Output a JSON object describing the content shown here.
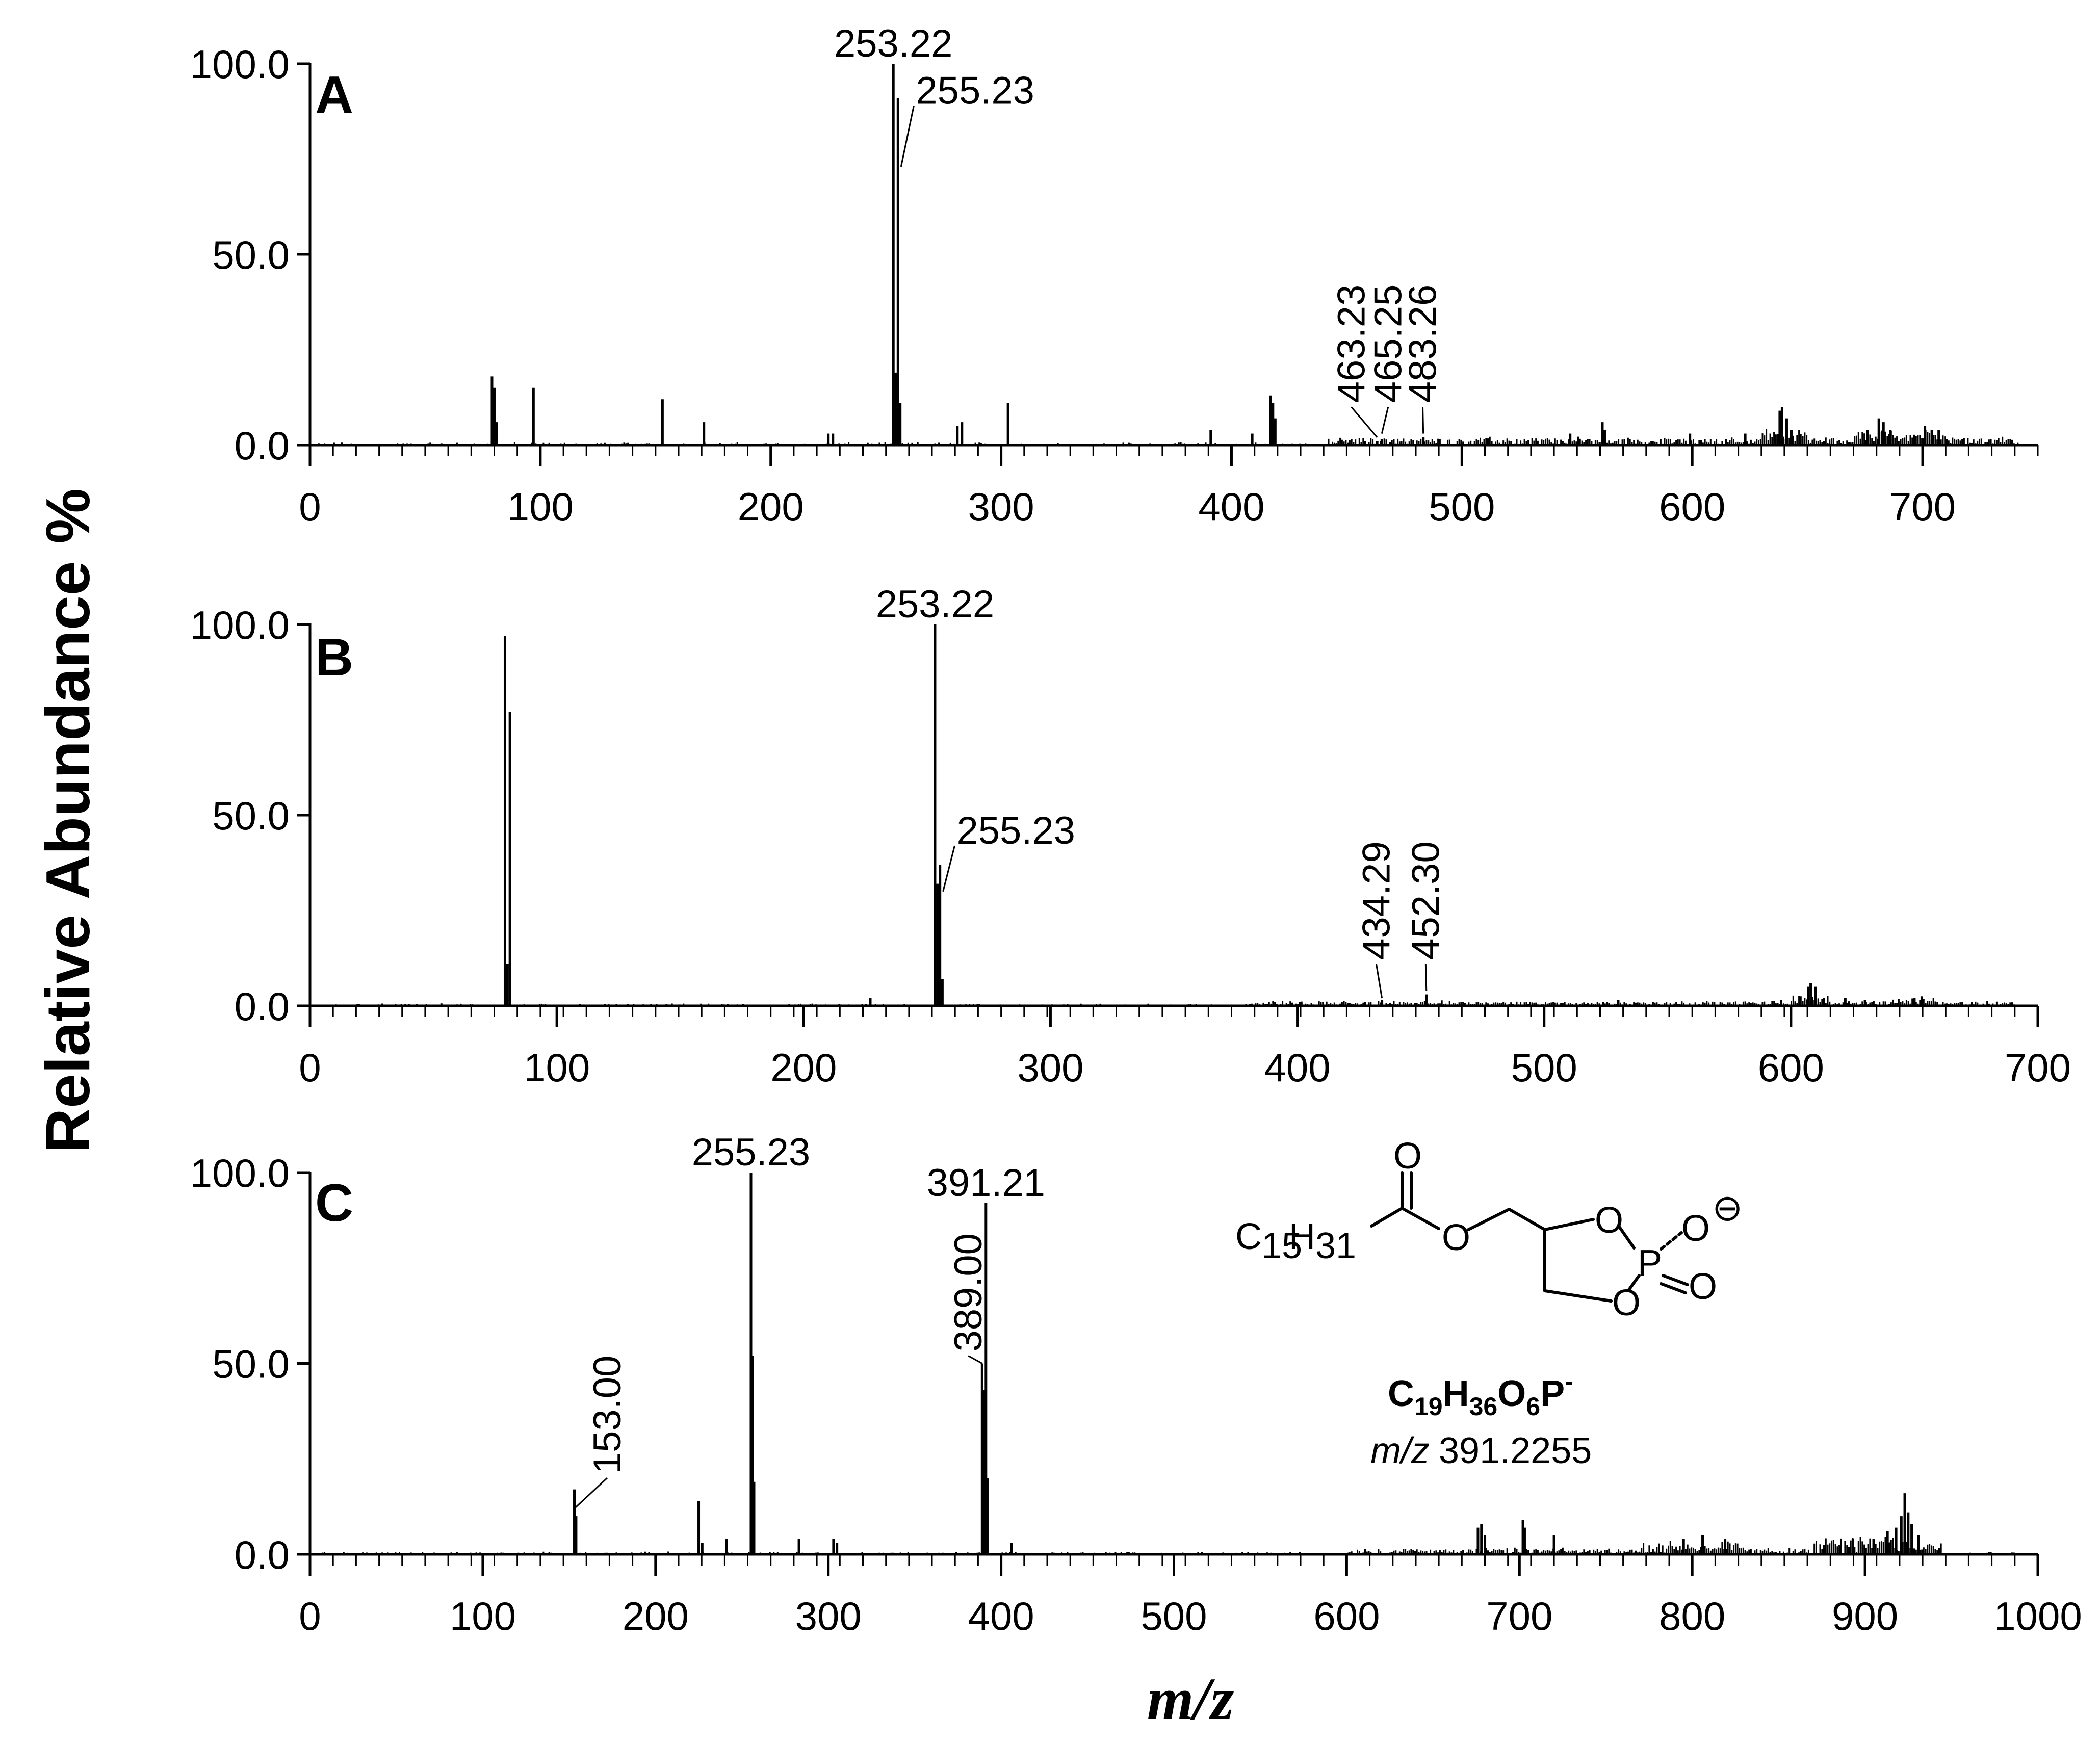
{
  "chart_data": [
    {
      "type": "bar",
      "panel": "A",
      "xlim": [
        0,
        750
      ],
      "ylim": [
        0,
        100
      ],
      "xticks": [
        "0",
        "100",
        "200",
        "300",
        "400",
        "500",
        "600",
        "700"
      ],
      "yticks": [
        "0.0",
        "50.0",
        "100.0"
      ],
      "peaks": [
        {
          "x": 79,
          "y": 18
        },
        {
          "x": 80,
          "y": 15
        },
        {
          "x": 81,
          "y": 6
        },
        {
          "x": 97,
          "y": 15
        },
        {
          "x": 153,
          "y": 12
        },
        {
          "x": 171,
          "y": 6
        },
        {
          "x": 225,
          "y": 3
        },
        {
          "x": 227,
          "y": 3
        },
        {
          "x": 253.22,
          "y": 100
        },
        {
          "x": 254.2,
          "y": 19
        },
        {
          "x": 255.23,
          "y": 91
        },
        {
          "x": 256.2,
          "y": 11
        },
        {
          "x": 281,
          "y": 5
        },
        {
          "x": 283,
          "y": 6
        },
        {
          "x": 303,
          "y": 11
        },
        {
          "x": 391,
          "y": 4
        },
        {
          "x": 409,
          "y": 3
        },
        {
          "x": 417,
          "y": 13
        },
        {
          "x": 418,
          "y": 11
        },
        {
          "x": 419,
          "y": 7
        },
        {
          "x": 463.23,
          "y": 1
        },
        {
          "x": 465.25,
          "y": 1.5
        },
        {
          "x": 483.26,
          "y": 2
        },
        {
          "x": 547,
          "y": 3
        },
        {
          "x": 561,
          "y": 6
        },
        {
          "x": 562,
          "y": 4
        },
        {
          "x": 599,
          "y": 3
        },
        {
          "x": 623,
          "y": 3
        },
        {
          "x": 638,
          "y": 9
        },
        {
          "x": 639,
          "y": 10
        },
        {
          "x": 641,
          "y": 7
        },
        {
          "x": 643,
          "y": 4
        },
        {
          "x": 676,
          "y": 4
        },
        {
          "x": 681,
          "y": 7
        },
        {
          "x": 683,
          "y": 6
        },
        {
          "x": 686,
          "y": 4
        },
        {
          "x": 701,
          "y": 5
        },
        {
          "x": 704,
          "y": 4
        },
        {
          "x": 707,
          "y": 4
        }
      ],
      "humps": [
        {
          "x0": 440,
          "x1": 740,
          "h": 1.6
        },
        {
          "x0": 630,
          "x1": 650,
          "h": 3
        },
        {
          "x0": 670,
          "x1": 710,
          "h": 2.5
        }
      ],
      "noise": 0.6,
      "labels": [
        {
          "text": "253.22",
          "x": 253.22,
          "y": 100,
          "style": "top"
        },
        {
          "text": "255.23",
          "x": 255.23,
          "y": 73,
          "style": "leader",
          "tx": 263,
          "ty": 89
        },
        {
          "text": "463.23",
          "x": 463.23,
          "y": 2,
          "style": "rot-leader",
          "tx": 452,
          "ty": 10
        },
        {
          "text": "465.25",
          "x": 465.25,
          "y": 3,
          "style": "rot-leader",
          "tx": 468,
          "ty": 10
        },
        {
          "text": "483.26",
          "x": 483.26,
          "y": 3,
          "style": "rot-leader",
          "tx": 483,
          "ty": 10
        }
      ],
      "panel_label": "A"
    },
    {
      "type": "bar",
      "panel": "B",
      "xlim": [
        0,
        700
      ],
      "ylim": [
        0,
        100
      ],
      "xticks": [
        "0",
        "100",
        "200",
        "300",
        "400",
        "500",
        "600",
        "700"
      ],
      "yticks": [
        "0.0",
        "50.0",
        "100.0"
      ],
      "peaks": [
        {
          "x": 79,
          "y": 97
        },
        {
          "x": 80,
          "y": 11
        },
        {
          "x": 81,
          "y": 77
        },
        {
          "x": 227,
          "y": 2
        },
        {
          "x": 253.22,
          "y": 100
        },
        {
          "x": 254.2,
          "y": 32
        },
        {
          "x": 255.23,
          "y": 37
        },
        {
          "x": 256.2,
          "y": 7
        },
        {
          "x": 434.29,
          "y": 1.5
        },
        {
          "x": 452.3,
          "y": 3
        },
        {
          "x": 530,
          "y": 1.5
        },
        {
          "x": 596,
          "y": 1.5
        },
        {
          "x": 607,
          "y": 5
        },
        {
          "x": 608,
          "y": 6
        },
        {
          "x": 610,
          "y": 5
        },
        {
          "x": 622,
          "y": 2
        },
        {
          "x": 630,
          "y": 1.5
        },
        {
          "x": 650,
          "y": 2
        },
        {
          "x": 653,
          "y": 2.5
        }
      ],
      "humps": [
        {
          "x0": 380,
          "x1": 690,
          "h": 0.9
        },
        {
          "x0": 600,
          "x1": 615,
          "h": 2
        },
        {
          "x0": 640,
          "x1": 660,
          "h": 1.5
        }
      ],
      "noise": 0.5,
      "labels": [
        {
          "text": "253.22",
          "x": 253.22,
          "y": 100,
          "style": "top"
        },
        {
          "text": "255.23",
          "x": 255.23,
          "y": 30,
          "style": "leader",
          "tx": 262,
          "ty": 42
        },
        {
          "text": "434.29",
          "x": 434.29,
          "y": 2,
          "style": "rot-leader",
          "tx": 432,
          "ty": 11
        },
        {
          "text": "452.30",
          "x": 452.3,
          "y": 4,
          "style": "rot-leader",
          "tx": 452,
          "ty": 11
        }
      ],
      "panel_label": "B"
    },
    {
      "type": "bar",
      "panel": "C",
      "xlim": [
        0,
        1000
      ],
      "ylim": [
        0,
        100
      ],
      "xticks": [
        "0",
        "100",
        "200",
        "300",
        "400",
        "500",
        "600",
        "700",
        "800",
        "900",
        "1000"
      ],
      "yticks": [
        "0.0",
        "50.0",
        "100.0"
      ],
      "peaks": [
        {
          "x": 153,
          "y": 17
        },
        {
          "x": 154,
          "y": 10
        },
        {
          "x": 225,
          "y": 14
        },
        {
          "x": 227,
          "y": 3
        },
        {
          "x": 241,
          "y": 4
        },
        {
          "x": 255.23,
          "y": 100
        },
        {
          "x": 256.2,
          "y": 52
        },
        {
          "x": 257,
          "y": 19
        },
        {
          "x": 283,
          "y": 4
        },
        {
          "x": 303,
          "y": 4
        },
        {
          "x": 305,
          "y": 3
        },
        {
          "x": 389.0,
          "y": 50
        },
        {
          "x": 390,
          "y": 43
        },
        {
          "x": 391.21,
          "y": 92
        },
        {
          "x": 392,
          "y": 20
        },
        {
          "x": 406,
          "y": 3
        },
        {
          "x": 676,
          "y": 7
        },
        {
          "x": 678,
          "y": 8
        },
        {
          "x": 680,
          "y": 5
        },
        {
          "x": 702,
          "y": 9
        },
        {
          "x": 703,
          "y": 7
        },
        {
          "x": 720,
          "y": 5
        },
        {
          "x": 795,
          "y": 4
        },
        {
          "x": 806,
          "y": 5
        },
        {
          "x": 819,
          "y": 4
        },
        {
          "x": 893,
          "y": 4
        },
        {
          "x": 905,
          "y": 4
        },
        {
          "x": 913,
          "y": 6
        },
        {
          "x": 918,
          "y": 7
        },
        {
          "x": 921,
          "y": 10
        },
        {
          "x": 923,
          "y": 16
        },
        {
          "x": 925,
          "y": 11
        },
        {
          "x": 927,
          "y": 8
        },
        {
          "x": 931,
          "y": 5
        }
      ],
      "humps": [
        {
          "x0": 600,
          "x1": 950,
          "h": 1.2
        },
        {
          "x0": 870,
          "x1": 945,
          "h": 3.5
        },
        {
          "x0": 770,
          "x1": 830,
          "h": 2
        }
      ],
      "noise": 0.6,
      "labels": [
        {
          "text": "255.23",
          "x": 255.23,
          "y": 100,
          "style": "top"
        },
        {
          "text": "391.21",
          "x": 391.21,
          "y": 92,
          "style": "top"
        },
        {
          "text": "389.00",
          "x": 389.0,
          "y": 50,
          "style": "rot-leader",
          "tx": 381,
          "ty": 52
        },
        {
          "text": "153.00",
          "x": 153.0,
          "y": 12,
          "style": "rot-leader",
          "tx": 172,
          "ty": 20
        }
      ],
      "panel_label": "C"
    }
  ],
  "ylabel": "Relative Abundance %",
  "xlabel": "m/z",
  "structure": {
    "chain_C": "C",
    "chain_C_sub": "15",
    "chain_H": "H",
    "chain_H_sub": "31",
    "atom_O_carbonyl": "O",
    "atom_O_ester": "O",
    "atom_O_ring_top": "O",
    "atom_O_ring_bottom": "O",
    "atom_P": "P",
    "atom_O_minus": "O",
    "atom_O_double": "O",
    "charge": "⊖"
  },
  "formula": {
    "C": "C",
    "C_sub": "19",
    "H": "H",
    "H_sub": "36",
    "O": "O",
    "O_sub": "6",
    "P": "P",
    "charge": "-"
  },
  "mz_note": {
    "prefix": "m/z",
    "value": "391.2255"
  }
}
